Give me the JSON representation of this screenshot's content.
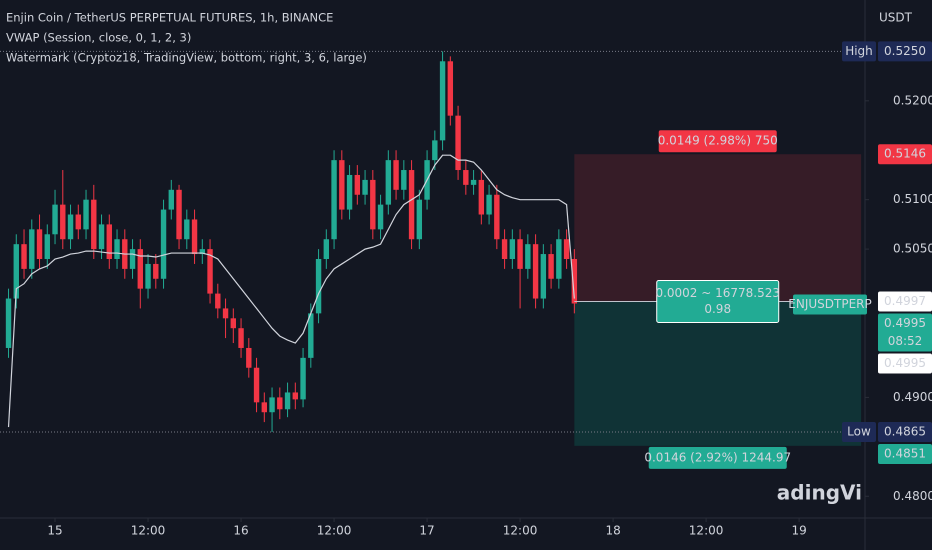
{
  "chart_data": {
    "type": "candlestick",
    "title": "Enjin Coin / TetherUS PERPETUAL FUTURES, 1h, BINANCE",
    "indicators": [
      "VWAP (Session, close, 0, 1, 2, 3)",
      "Watermark (Cryptoz18, TradingView, bottom, right, 3, 6, large)"
    ],
    "watermark": "adingVi",
    "currency": "USDT",
    "up_color": "#22ab94",
    "down_color": "#f23645",
    "x": [
      -6,
      -5,
      -4,
      -3,
      -2,
      -1,
      0,
      1,
      2,
      3,
      4,
      5,
      6,
      7,
      8,
      9,
      10,
      11,
      12,
      13,
      14,
      15,
      16,
      17,
      18,
      19,
      20,
      21,
      22,
      23,
      24,
      25,
      26,
      27,
      28,
      29,
      30,
      31,
      32,
      33,
      34,
      35,
      36,
      37,
      38,
      39,
      40,
      41,
      42,
      43,
      44,
      45,
      46,
      47,
      48,
      49,
      50,
      51,
      52,
      53,
      54,
      55,
      56,
      57,
      58,
      59,
      60,
      61,
      62,
      63,
      64,
      65,
      66,
      67
    ],
    "open": [
      0.495,
      0.5,
      0.5055,
      0.503,
      0.507,
      0.504,
      0.5065,
      0.5095,
      0.506,
      0.5085,
      0.507,
      0.51,
      0.505,
      0.5075,
      0.504,
      0.506,
      0.503,
      0.505,
      0.501,
      0.5035,
      0.502,
      0.509,
      0.511,
      0.506,
      0.508,
      0.5045,
      0.505,
      0.5005,
      0.499,
      0.498,
      0.497,
      0.495,
      0.493,
      0.4895,
      0.4885,
      0.49,
      0.4888,
      0.4905,
      0.4898,
      0.494,
      0.4985,
      0.504,
      0.506,
      0.514,
      0.509,
      0.5125,
      0.5105,
      0.512,
      0.507,
      0.5095,
      0.514,
      0.511,
      0.513,
      0.506,
      0.51,
      0.514,
      0.516,
      0.524,
      0.5185,
      0.513,
      0.5115,
      0.512,
      0.5085,
      0.5105,
      0.506,
      0.504,
      0.506,
      0.503,
      0.5055,
      0.5,
      0.5045,
      0.502,
      0.506,
      0.504
    ],
    "high": [
      0.501,
      0.5065,
      0.507,
      0.508,
      0.5085,
      0.5075,
      0.511,
      0.513,
      0.5095,
      0.5095,
      0.511,
      0.5115,
      0.5085,
      0.5085,
      0.507,
      0.507,
      0.506,
      0.506,
      0.5045,
      0.5045,
      0.51,
      0.512,
      0.5115,
      0.509,
      0.509,
      0.506,
      0.506,
      0.5015,
      0.5,
      0.499,
      0.498,
      0.496,
      0.494,
      0.4905,
      0.491,
      0.491,
      0.4915,
      0.4915,
      0.495,
      0.4995,
      0.505,
      0.507,
      0.515,
      0.515,
      0.5135,
      0.5135,
      0.513,
      0.513,
      0.5105,
      0.515,
      0.515,
      0.514,
      0.514,
      0.511,
      0.515,
      0.517,
      0.525,
      0.5245,
      0.5195,
      0.514,
      0.513,
      0.513,
      0.5115,
      0.5115,
      0.507,
      0.507,
      0.507,
      0.5065,
      0.5065,
      0.5055,
      0.5055,
      0.507,
      0.507,
      0.505
    ],
    "low": [
      0.494,
      0.499,
      0.502,
      0.502,
      0.503,
      0.503,
      0.5055,
      0.505,
      0.505,
      0.506,
      0.506,
      0.504,
      0.504,
      0.503,
      0.503,
      0.502,
      0.502,
      0.499,
      0.5,
      0.501,
      0.501,
      0.508,
      0.505,
      0.505,
      0.5035,
      0.5035,
      0.4995,
      0.498,
      0.496,
      0.4955,
      0.494,
      0.492,
      0.4885,
      0.4875,
      0.4865,
      0.4878,
      0.488,
      0.4888,
      0.489,
      0.493,
      0.4975,
      0.503,
      0.505,
      0.508,
      0.508,
      0.5095,
      0.5095,
      0.506,
      0.506,
      0.5085,
      0.51,
      0.51,
      0.505,
      0.505,
      0.509,
      0.513,
      0.515,
      0.5175,
      0.512,
      0.5105,
      0.5105,
      0.5075,
      0.5075,
      0.505,
      0.503,
      0.503,
      0.499,
      0.502,
      0.499,
      0.499,
      0.501,
      0.501,
      0.503,
      0.4985
    ],
    "close": [
      0.5,
      0.5055,
      0.503,
      0.507,
      0.504,
      0.5065,
      0.5095,
      0.506,
      0.5085,
      0.507,
      0.51,
      0.505,
      0.5075,
      0.504,
      0.506,
      0.503,
      0.505,
      0.501,
      0.5035,
      0.502,
      0.509,
      0.511,
      0.506,
      0.508,
      0.5045,
      0.505,
      0.5005,
      0.499,
      0.498,
      0.497,
      0.495,
      0.493,
      0.4895,
      0.4885,
      0.49,
      0.4888,
      0.4905,
      0.4898,
      0.494,
      0.4985,
      0.504,
      0.506,
      0.514,
      0.509,
      0.5125,
      0.5105,
      0.512,
      0.507,
      0.5095,
      0.514,
      0.511,
      0.513,
      0.506,
      0.51,
      0.514,
      0.516,
      0.524,
      0.5185,
      0.513,
      0.5115,
      0.512,
      0.5085,
      0.5105,
      0.506,
      0.504,
      0.506,
      0.503,
      0.5055,
      0.5,
      0.5045,
      0.502,
      0.506,
      0.504,
      0.4995
    ],
    "vwap": {
      "color": "#d1d4dc",
      "values": [
        0.487,
        0.501,
        0.5015,
        0.5025,
        0.503,
        0.5033,
        0.504,
        0.5042,
        0.5045,
        0.5046,
        0.5048,
        0.5048,
        0.5047,
        0.5046,
        0.5046,
        0.5045,
        0.5045,
        0.5043,
        0.5043,
        0.5042,
        0.5044,
        0.5046,
        0.5046,
        0.5046,
        0.5046,
        0.5046,
        0.5044,
        0.504,
        0.503,
        0.502,
        0.501,
        0.5,
        0.499,
        0.498,
        0.497,
        0.4962,
        0.4958,
        0.4955,
        0.4965,
        0.4985,
        0.5005,
        0.502,
        0.503,
        0.5035,
        0.504,
        0.5045,
        0.505,
        0.5052,
        0.5055,
        0.507,
        0.5085,
        0.5095,
        0.51,
        0.5105,
        0.512,
        0.5135,
        0.5145,
        0.5145,
        0.514,
        0.514,
        0.5138,
        0.513,
        0.512,
        0.511,
        0.5105,
        0.5102,
        0.51,
        0.51,
        0.51,
        0.51,
        0.51,
        0.51,
        0.5095,
        0.5
      ]
    },
    "xlim": [
      -7.1,
      104.5
    ],
    "xticks": [
      {
        "value": 0,
        "label": "15"
      },
      {
        "value": 12,
        "label": "12:00"
      },
      {
        "value": 24,
        "label": "16"
      },
      {
        "value": 36,
        "label": "12:00"
      },
      {
        "value": 48,
        "label": "17"
      },
      {
        "value": 60,
        "label": "12:00"
      },
      {
        "value": 72,
        "label": "18"
      },
      {
        "value": 84,
        "label": "12:00"
      },
      {
        "value": 96,
        "label": "19"
      }
    ],
    "ylim": [
      0.4778,
      0.5302
    ],
    "yticks": [
      {
        "value": 0.52,
        "label": "0.5200"
      },
      {
        "value": 0.51,
        "label": "0.5100"
      },
      {
        "value": 0.505,
        "label": "0.5050"
      },
      {
        "value": 0.49,
        "label": "0.4900"
      },
      {
        "value": 0.48,
        "label": "0.4800"
      }
    ],
    "position": {
      "start": 67,
      "end": 104,
      "entry": 0.4997,
      "stop": 0.5146,
      "target": 0.4851,
      "stop_label": "0.0149 (2.98%) 750",
      "entry_label": [
        "0.0002 ~ 16778.523",
        "0.98"
      ],
      "target_label": "0.0146 (2.92%) 1244.97",
      "symbol": "ENJUSDTPERP"
    },
    "price_tags": [
      {
        "value": 0.525,
        "label": "0.5250",
        "title": "High",
        "color": "#1e2a56"
      },
      {
        "value": 0.5146,
        "label": "0.5146",
        "color": "#f23645"
      },
      {
        "value": 0.4997,
        "label": "0.4997",
        "color": "#ffffff"
      },
      {
        "value": 0.4995,
        "label": "0.4995",
        "countdown": "08:52",
        "color": "#22ab94"
      },
      {
        "value": 0.4995,
        "label": "0.4995",
        "color": "#ffffff"
      },
      {
        "value": 0.4865,
        "label": "0.4865",
        "title": "Low",
        "color": "#1e2a56"
      },
      {
        "value": 0.4851,
        "label": "0.4851",
        "color": "#22ab94"
      }
    ]
  }
}
